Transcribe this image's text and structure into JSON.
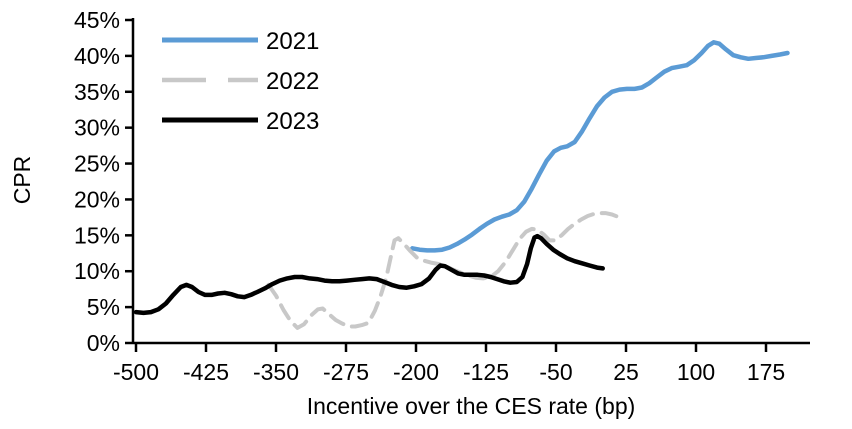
{
  "chart_data": {
    "type": "line",
    "title": "",
    "xlabel": "Incentive over the CES rate (bp)",
    "ylabel": "CPR",
    "grid": false,
    "legend_position": "top-left-inside",
    "x_axis": {
      "min": -500,
      "max": 175,
      "tick_step": 75,
      "suffix": ""
    },
    "y_axis": {
      "min": 0,
      "max": 45,
      "tick_step": 5,
      "suffix": "%"
    },
    "axis_color": "#000000",
    "series": [
      {
        "name": "2021",
        "color": "#5B9BD5",
        "dash": "solid",
        "width": 4.5,
        "points": [
          [
            -204,
            13.2
          ],
          [
            -196,
            13.0
          ],
          [
            -188,
            12.9
          ],
          [
            -180,
            12.9
          ],
          [
            -172,
            13.0
          ],
          [
            -164,
            13.3
          ],
          [
            -156,
            13.8
          ],
          [
            -148,
            14.4
          ],
          [
            -140,
            15.1
          ],
          [
            -132,
            15.9
          ],
          [
            -124,
            16.6
          ],
          [
            -116,
            17.2
          ],
          [
            -108,
            17.6
          ],
          [
            -100,
            17.9
          ],
          [
            -92,
            18.5
          ],
          [
            -84,
            19.7
          ],
          [
            -76,
            21.5
          ],
          [
            -68,
            23.5
          ],
          [
            -60,
            25.4
          ],
          [
            -52,
            26.7
          ],
          [
            -45,
            27.2
          ],
          [
            -38,
            27.4
          ],
          [
            -30,
            28.0
          ],
          [
            -22,
            29.5
          ],
          [
            -14,
            31.3
          ],
          [
            -6,
            33.0
          ],
          [
            2,
            34.2
          ],
          [
            10,
            35.0
          ],
          [
            18,
            35.3
          ],
          [
            26,
            35.4
          ],
          [
            34,
            35.4
          ],
          [
            42,
            35.6
          ],
          [
            50,
            36.2
          ],
          [
            58,
            37.0
          ],
          [
            66,
            37.8
          ],
          [
            74,
            38.3
          ],
          [
            82,
            38.5
          ],
          [
            90,
            38.7
          ],
          [
            98,
            39.4
          ],
          [
            106,
            40.4
          ],
          [
            113,
            41.4
          ],
          [
            119,
            41.9
          ],
          [
            125,
            41.7
          ],
          [
            132,
            40.9
          ],
          [
            140,
            40.1
          ],
          [
            148,
            39.8
          ],
          [
            156,
            39.6
          ],
          [
            164,
            39.7
          ],
          [
            172,
            39.8
          ],
          [
            181,
            40.0
          ],
          [
            190,
            40.2
          ],
          [
            198,
            40.4
          ]
        ]
      },
      {
        "name": "2022",
        "color": "#C8C8C8",
        "dash": "dashed",
        "width": 4,
        "points": [
          [
            -358,
            8.1
          ],
          [
            -350,
            6.6
          ],
          [
            -342,
            4.6
          ],
          [
            -334,
            3.0
          ],
          [
            -327,
            2.1
          ],
          [
            -320,
            2.6
          ],
          [
            -312,
            3.9
          ],
          [
            -305,
            4.7
          ],
          [
            -300,
            4.8
          ],
          [
            -293,
            4.0
          ],
          [
            -286,
            3.2
          ],
          [
            -279,
            2.7
          ],
          [
            -272,
            2.3
          ],
          [
            -265,
            2.3
          ],
          [
            -258,
            2.5
          ],
          [
            -251,
            2.8
          ],
          [
            -244,
            4.5
          ],
          [
            -238,
            6.5
          ],
          [
            -232,
            9.0
          ],
          [
            -227,
            12.0
          ],
          [
            -223,
            14.3
          ],
          [
            -219,
            14.6
          ],
          [
            -213,
            13.8
          ],
          [
            -206,
            12.8
          ],
          [
            -199,
            11.9
          ],
          [
            -192,
            11.5
          ],
          [
            -184,
            11.2
          ],
          [
            -176,
            11.0
          ],
          [
            -168,
            10.7
          ],
          [
            -160,
            10.2
          ],
          [
            -152,
            9.8
          ],
          [
            -144,
            9.4
          ],
          [
            -136,
            9.1
          ],
          [
            -128,
            9.0
          ],
          [
            -120,
            9.2
          ],
          [
            -112,
            10.0
          ],
          [
            -104,
            11.3
          ],
          [
            -96,
            13.0
          ],
          [
            -89,
            14.5
          ],
          [
            -82,
            15.5
          ],
          [
            -76,
            15.9
          ],
          [
            -70,
            15.8
          ],
          [
            -63,
            15.1
          ],
          [
            -57,
            14.3
          ],
          [
            -51,
            14.3
          ],
          [
            -44,
            15.0
          ],
          [
            -37,
            15.9
          ],
          [
            -30,
            16.6
          ],
          [
            -23,
            17.2
          ],
          [
            -16,
            17.7
          ],
          [
            -9,
            18.0
          ],
          [
            -3,
            18.1
          ],
          [
            3,
            18.1
          ],
          [
            10,
            17.9
          ],
          [
            16,
            17.6
          ],
          [
            22,
            17.4
          ]
        ]
      },
      {
        "name": "2023",
        "color": "#000000",
        "dash": "solid",
        "width": 4.5,
        "points": [
          [
            -500,
            4.3
          ],
          [
            -492,
            4.2
          ],
          [
            -484,
            4.3
          ],
          [
            -476,
            4.7
          ],
          [
            -468,
            5.5
          ],
          [
            -460,
            6.7
          ],
          [
            -452,
            7.8
          ],
          [
            -446,
            8.1
          ],
          [
            -440,
            7.8
          ],
          [
            -433,
            7.1
          ],
          [
            -426,
            6.7
          ],
          [
            -419,
            6.7
          ],
          [
            -412,
            6.9
          ],
          [
            -405,
            7.0
          ],
          [
            -398,
            6.8
          ],
          [
            -391,
            6.5
          ],
          [
            -384,
            6.4
          ],
          [
            -377,
            6.7
          ],
          [
            -370,
            7.1
          ],
          [
            -362,
            7.6
          ],
          [
            -354,
            8.2
          ],
          [
            -346,
            8.7
          ],
          [
            -338,
            9.0
          ],
          [
            -330,
            9.2
          ],
          [
            -322,
            9.2
          ],
          [
            -314,
            9.0
          ],
          [
            -306,
            8.9
          ],
          [
            -298,
            8.7
          ],
          [
            -290,
            8.6
          ],
          [
            -282,
            8.6
          ],
          [
            -274,
            8.7
          ],
          [
            -266,
            8.8
          ],
          [
            -258,
            8.9
          ],
          [
            -250,
            9.0
          ],
          [
            -242,
            8.9
          ],
          [
            -234,
            8.5
          ],
          [
            -226,
            8.1
          ],
          [
            -218,
            7.8
          ],
          [
            -210,
            7.7
          ],
          [
            -202,
            7.9
          ],
          [
            -194,
            8.2
          ],
          [
            -186,
            9.0
          ],
          [
            -179,
            10.2
          ],
          [
            -174,
            10.8
          ],
          [
            -169,
            10.7
          ],
          [
            -162,
            10.2
          ],
          [
            -155,
            9.7
          ],
          [
            -148,
            9.5
          ],
          [
            -141,
            9.5
          ],
          [
            -134,
            9.5
          ],
          [
            -127,
            9.4
          ],
          [
            -120,
            9.2
          ],
          [
            -113,
            8.9
          ],
          [
            -106,
            8.6
          ],
          [
            -99,
            8.4
          ],
          [
            -92,
            8.5
          ],
          [
            -86,
            9.2
          ],
          [
            -81,
            11.0
          ],
          [
            -77,
            13.2
          ],
          [
            -73,
            14.7
          ],
          [
            -70,
            14.9
          ],
          [
            -66,
            14.6
          ],
          [
            -60,
            13.8
          ],
          [
            -53,
            13.0
          ],
          [
            -46,
            12.4
          ],
          [
            -38,
            11.8
          ],
          [
            -30,
            11.4
          ],
          [
            -22,
            11.1
          ],
          [
            -14,
            10.8
          ],
          [
            -6,
            10.5
          ],
          [
            0,
            10.4
          ]
        ]
      }
    ]
  }
}
